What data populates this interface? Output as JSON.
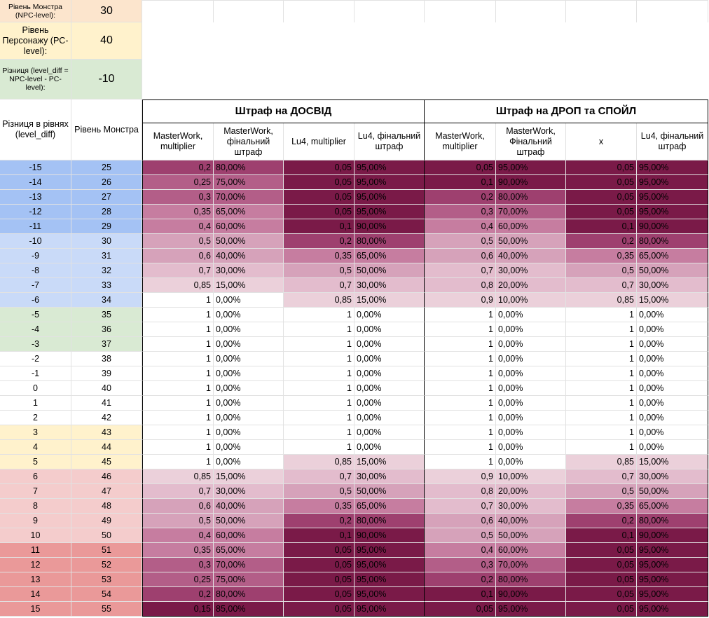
{
  "params": [
    {
      "label": "Рівень Монстра (NPC-level):",
      "value": "30",
      "bg": "#fce5cd"
    },
    {
      "label": "Рівень Персонажу (PC-level):",
      "value": "40",
      "bg": "#fff2cc"
    },
    {
      "label": "Різниця (level_diff = NPC-level - PC-level):",
      "value": "-10",
      "bg": "#d9ead3"
    }
  ],
  "headers": {
    "col_a": "Різниця в рівнях (level_diff)",
    "col_b": "Рівень Монстра",
    "group_exp": "Штраф на ДОСВІД",
    "group_drop": "Штраф на ДРОП та СПОЙЛ",
    "sub": [
      "MasterWork, multiplier",
      "MasterWork, фінальний штраф",
      "Lu4, multiplier",
      "Lu4, фінальний штраф",
      "MasterWork, multiplier",
      "MasterWork, Фінальний штраф",
      "x",
      "Lu4, фінальний штраф"
    ]
  },
  "colors": {
    "diff_blue_dark": "#a4c2f4",
    "diff_blue_light": "#c9daf8",
    "diff_green": "#d9ead3",
    "diff_white": "#ffffff",
    "diff_yellow": "#fff2cc",
    "diff_pink": "#f4cccc",
    "diff_red": "#ea9999",
    "penalty_scale": [
      "#ffffff",
      "#ebd0da",
      "#e3bccd",
      "#d6a2ba",
      "#c67da0",
      "#b35e88",
      "#9e406f",
      "#7a1a48"
    ]
  },
  "rows": [
    {
      "diff": "-15",
      "lvl": "25",
      "band": "diff_blue_dark",
      "mw_m": "0,2",
      "mw_p": "80,00%",
      "lu_m": "0,05",
      "lu_p": "95,00%",
      "dmw_m": "0,05",
      "dmw_p": "95,00%",
      "dx": "0,05",
      "dlu_p": "95,00%"
    },
    {
      "diff": "-14",
      "lvl": "26",
      "band": "diff_blue_dark",
      "mw_m": "0,25",
      "mw_p": "75,00%",
      "lu_m": "0,05",
      "lu_p": "95,00%",
      "dmw_m": "0,1",
      "dmw_p": "90,00%",
      "dx": "0,05",
      "dlu_p": "95,00%"
    },
    {
      "diff": "-13",
      "lvl": "27",
      "band": "diff_blue_dark",
      "mw_m": "0,3",
      "mw_p": "70,00%",
      "lu_m": "0,05",
      "lu_p": "95,00%",
      "dmw_m": "0,2",
      "dmw_p": "80,00%",
      "dx": "0,05",
      "dlu_p": "95,00%"
    },
    {
      "diff": "-12",
      "lvl": "28",
      "band": "diff_blue_dark",
      "mw_m": "0,35",
      "mw_p": "65,00%",
      "lu_m": "0,05",
      "lu_p": "95,00%",
      "dmw_m": "0,3",
      "dmw_p": "70,00%",
      "dx": "0,05",
      "dlu_p": "95,00%"
    },
    {
      "diff": "-11",
      "lvl": "29",
      "band": "diff_blue_dark",
      "mw_m": "0,4",
      "mw_p": "60,00%",
      "lu_m": "0,1",
      "lu_p": "90,00%",
      "dmw_m": "0,4",
      "dmw_p": "60,00%",
      "dx": "0,1",
      "dlu_p": "90,00%"
    },
    {
      "diff": "-10",
      "lvl": "30",
      "band": "diff_blue_light",
      "mw_m": "0,5",
      "mw_p": "50,00%",
      "lu_m": "0,2",
      "lu_p": "80,00%",
      "dmw_m": "0,5",
      "dmw_p": "50,00%",
      "dx": "0,2",
      "dlu_p": "80,00%"
    },
    {
      "diff": "-9",
      "lvl": "31",
      "band": "diff_blue_light",
      "mw_m": "0,6",
      "mw_p": "40,00%",
      "lu_m": "0,35",
      "lu_p": "65,00%",
      "dmw_m": "0,6",
      "dmw_p": "40,00%",
      "dx": "0,35",
      "dlu_p": "65,00%"
    },
    {
      "diff": "-8",
      "lvl": "32",
      "band": "diff_blue_light",
      "mw_m": "0,7",
      "mw_p": "30,00%",
      "lu_m": "0,5",
      "lu_p": "50,00%",
      "dmw_m": "0,7",
      "dmw_p": "30,00%",
      "dx": "0,5",
      "dlu_p": "50,00%"
    },
    {
      "diff": "-7",
      "lvl": "33",
      "band": "diff_blue_light",
      "mw_m": "0,85",
      "mw_p": "15,00%",
      "lu_m": "0,7",
      "lu_p": "30,00%",
      "dmw_m": "0,8",
      "dmw_p": "20,00%",
      "dx": "0,7",
      "dlu_p": "30,00%"
    },
    {
      "diff": "-6",
      "lvl": "34",
      "band": "diff_blue_light",
      "mw_m": "1",
      "mw_p": "0,00%",
      "lu_m": "0,85",
      "lu_p": "15,00%",
      "dmw_m": "0,9",
      "dmw_p": "10,00%",
      "dx": "0,85",
      "dlu_p": "15,00%"
    },
    {
      "diff": "-5",
      "lvl": "35",
      "band": "diff_green",
      "mw_m": "1",
      "mw_p": "0,00%",
      "lu_m": "1",
      "lu_p": "0,00%",
      "dmw_m": "1",
      "dmw_p": "0,00%",
      "dx": "1",
      "dlu_p": "0,00%"
    },
    {
      "diff": "-4",
      "lvl": "36",
      "band": "diff_green",
      "mw_m": "1",
      "mw_p": "0,00%",
      "lu_m": "1",
      "lu_p": "0,00%",
      "dmw_m": "1",
      "dmw_p": "0,00%",
      "dx": "1",
      "dlu_p": "0,00%"
    },
    {
      "diff": "-3",
      "lvl": "37",
      "band": "diff_green",
      "mw_m": "1",
      "mw_p": "0,00%",
      "lu_m": "1",
      "lu_p": "0,00%",
      "dmw_m": "1",
      "dmw_p": "0,00%",
      "dx": "1",
      "dlu_p": "0,00%"
    },
    {
      "diff": "-2",
      "lvl": "38",
      "band": "diff_white",
      "mw_m": "1",
      "mw_p": "0,00%",
      "lu_m": "1",
      "lu_p": "0,00%",
      "dmw_m": "1",
      "dmw_p": "0,00%",
      "dx": "1",
      "dlu_p": "0,00%"
    },
    {
      "diff": "-1",
      "lvl": "39",
      "band": "diff_white",
      "mw_m": "1",
      "mw_p": "0,00%",
      "lu_m": "1",
      "lu_p": "0,00%",
      "dmw_m": "1",
      "dmw_p": "0,00%",
      "dx": "1",
      "dlu_p": "0,00%"
    },
    {
      "diff": "0",
      "lvl": "40",
      "band": "diff_white",
      "mw_m": "1",
      "mw_p": "0,00%",
      "lu_m": "1",
      "lu_p": "0,00%",
      "dmw_m": "1",
      "dmw_p": "0,00%",
      "dx": "1",
      "dlu_p": "0,00%"
    },
    {
      "diff": "1",
      "lvl": "41",
      "band": "diff_white",
      "mw_m": "1",
      "mw_p": "0,00%",
      "lu_m": "1",
      "lu_p": "0,00%",
      "dmw_m": "1",
      "dmw_p": "0,00%",
      "dx": "1",
      "dlu_p": "0,00%"
    },
    {
      "diff": "2",
      "lvl": "42",
      "band": "diff_white",
      "mw_m": "1",
      "mw_p": "0,00%",
      "lu_m": "1",
      "lu_p": "0,00%",
      "dmw_m": "1",
      "dmw_p": "0,00%",
      "dx": "1",
      "dlu_p": "0,00%"
    },
    {
      "diff": "3",
      "lvl": "43",
      "band": "diff_yellow",
      "mw_m": "1",
      "mw_p": "0,00%",
      "lu_m": "1",
      "lu_p": "0,00%",
      "dmw_m": "1",
      "dmw_p": "0,00%",
      "dx": "1",
      "dlu_p": "0,00%"
    },
    {
      "diff": "4",
      "lvl": "44",
      "band": "diff_yellow",
      "mw_m": "1",
      "mw_p": "0,00%",
      "lu_m": "1",
      "lu_p": "0,00%",
      "dmw_m": "1",
      "dmw_p": "0,00%",
      "dx": "1",
      "dlu_p": "0,00%"
    },
    {
      "diff": "5",
      "lvl": "45",
      "band": "diff_yellow",
      "mw_m": "1",
      "mw_p": "0,00%",
      "lu_m": "0,85",
      "lu_p": "15,00%",
      "dmw_m": "1",
      "dmw_p": "0,00%",
      "dx": "0,85",
      "dlu_p": "15,00%"
    },
    {
      "diff": "6",
      "lvl": "46",
      "band": "diff_pink",
      "mw_m": "0,85",
      "mw_p": "15,00%",
      "lu_m": "0,7",
      "lu_p": "30,00%",
      "dmw_m": "0,9",
      "dmw_p": "10,00%",
      "dx": "0,7",
      "dlu_p": "30,00%"
    },
    {
      "diff": "7",
      "lvl": "47",
      "band": "diff_pink",
      "mw_m": "0,7",
      "mw_p": "30,00%",
      "lu_m": "0,5",
      "lu_p": "50,00%",
      "dmw_m": "0,8",
      "dmw_p": "20,00%",
      "dx": "0,5",
      "dlu_p": "50,00%"
    },
    {
      "diff": "8",
      "lvl": "48",
      "band": "diff_pink",
      "mw_m": "0,6",
      "mw_p": "40,00%",
      "lu_m": "0,35",
      "lu_p": "65,00%",
      "dmw_m": "0,7",
      "dmw_p": "30,00%",
      "dx": "0,35",
      "dlu_p": "65,00%"
    },
    {
      "diff": "9",
      "lvl": "49",
      "band": "diff_pink",
      "mw_m": "0,5",
      "mw_p": "50,00%",
      "lu_m": "0,2",
      "lu_p": "80,00%",
      "dmw_m": "0,6",
      "dmw_p": "40,00%",
      "dx": "0,2",
      "dlu_p": "80,00%"
    },
    {
      "diff": "10",
      "lvl": "50",
      "band": "diff_pink",
      "mw_m": "0,4",
      "mw_p": "60,00%",
      "lu_m": "0,1",
      "lu_p": "90,00%",
      "dmw_m": "0,5",
      "dmw_p": "50,00%",
      "dx": "0,1",
      "dlu_p": "90,00%"
    },
    {
      "diff": "11",
      "lvl": "51",
      "band": "diff_red",
      "mw_m": "0,35",
      "mw_p": "65,00%",
      "lu_m": "0,05",
      "lu_p": "95,00%",
      "dmw_m": "0,4",
      "dmw_p": "60,00%",
      "dx": "0,05",
      "dlu_p": "95,00%"
    },
    {
      "diff": "12",
      "lvl": "52",
      "band": "diff_red",
      "mw_m": "0,3",
      "mw_p": "70,00%",
      "lu_m": "0,05",
      "lu_p": "95,00%",
      "dmw_m": "0,3",
      "dmw_p": "70,00%",
      "dx": "0,05",
      "dlu_p": "95,00%"
    },
    {
      "diff": "13",
      "lvl": "53",
      "band": "diff_red",
      "mw_m": "0,25",
      "mw_p": "75,00%",
      "lu_m": "0,05",
      "lu_p": "95,00%",
      "dmw_m": "0,2",
      "dmw_p": "80,00%",
      "dx": "0,05",
      "dlu_p": "95,00%"
    },
    {
      "diff": "14",
      "lvl": "54",
      "band": "diff_red",
      "mw_m": "0,2",
      "mw_p": "80,00%",
      "lu_m": "0,05",
      "lu_p": "95,00%",
      "dmw_m": "0,1",
      "dmw_p": "90,00%",
      "dx": "0,05",
      "dlu_p": "95,00%"
    },
    {
      "diff": "15",
      "lvl": "55",
      "band": "diff_red",
      "mw_m": "0,15",
      "mw_p": "85,00%",
      "lu_m": "0,05",
      "lu_p": "95,00%",
      "dmw_m": "0,05",
      "dmw_p": "95,00%",
      "dx": "0,05",
      "dlu_p": "95,00%"
    }
  ]
}
